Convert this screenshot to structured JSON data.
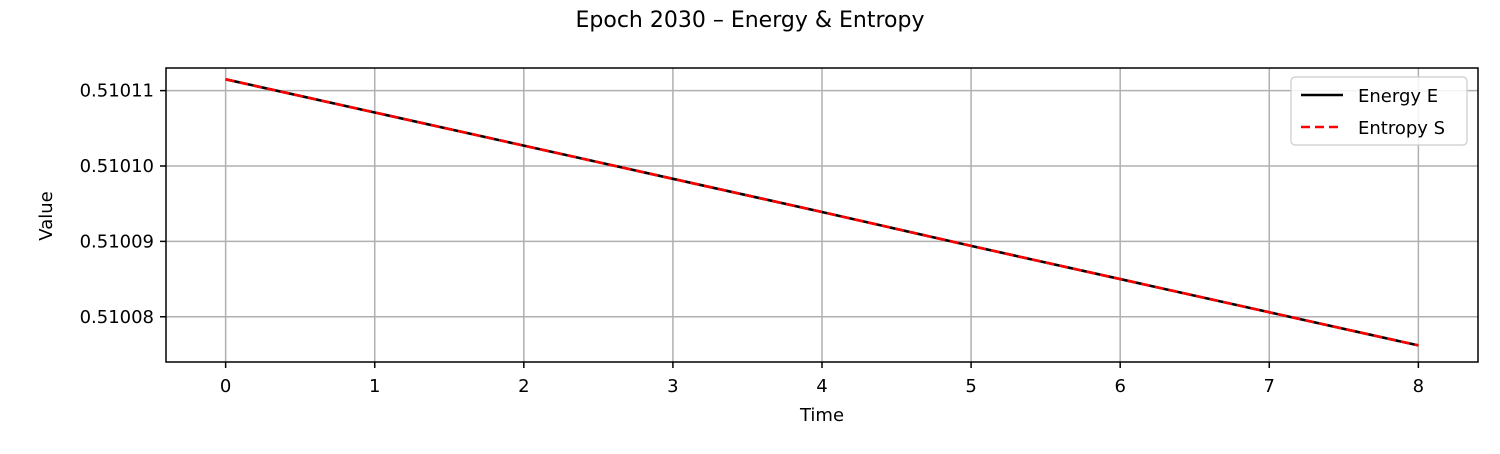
{
  "chart_data": {
    "type": "line",
    "title": "Epoch 2030 – Energy & Entropy",
    "xlabel": "Time",
    "ylabel": "Value",
    "x": [
      0,
      1,
      2,
      3,
      4,
      5,
      6,
      7,
      8
    ],
    "xlim": [
      -0.4,
      8.4
    ],
    "ylim": [
      0.510074,
      0.510113
    ],
    "x_ticks": [
      0,
      1,
      2,
      3,
      4,
      5,
      6,
      7,
      8
    ],
    "x_tick_labels": [
      "0",
      "1",
      "2",
      "3",
      "4",
      "5",
      "6",
      "7",
      "8"
    ],
    "y_ticks": [
      0.51008,
      0.51009,
      0.5101,
      0.51011
    ],
    "y_tick_labels": [
      "0.51008",
      "0.51009",
      "0.51010",
      "0.51011"
    ],
    "grid": true,
    "legend_position": "top-right",
    "series": [
      {
        "name": "Energy E",
        "color": "#000000",
        "style": "solid",
        "values": [
          0.5101115,
          0.5101071,
          0.5101027,
          0.5100983,
          0.5100939,
          0.5100894,
          0.510085,
          0.5100806,
          0.5100762
        ]
      },
      {
        "name": "Entropy S",
        "color": "#ff0000",
        "style": "dashed",
        "values": [
          0.5101115,
          0.5101071,
          0.5101027,
          0.5100983,
          0.5100939,
          0.5100894,
          0.510085,
          0.5100806,
          0.5100762
        ]
      }
    ]
  }
}
